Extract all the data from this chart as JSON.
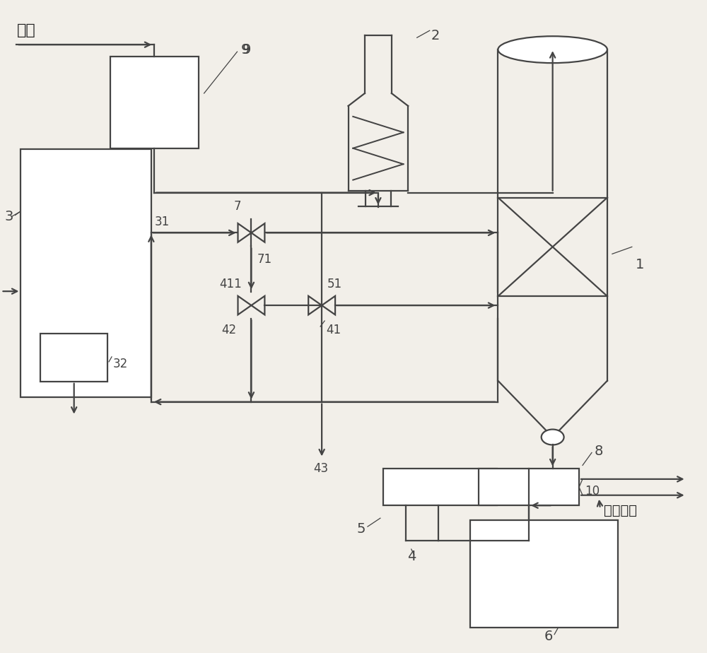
{
  "bg_color": "#f2efe9",
  "lc": "#444444",
  "lw": 1.6,
  "fs": 12,
  "fs_large": 14,
  "fs_chin": 15
}
